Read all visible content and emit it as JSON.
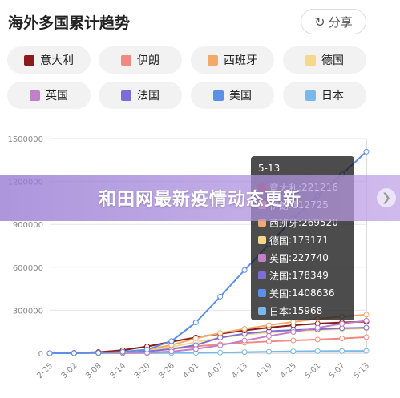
{
  "header": {
    "title": "海外多国累计趋势",
    "share_label": "分享",
    "share_icon": "share-icon"
  },
  "legend": [
    {
      "name": "意大利",
      "color": "#8b1a1a"
    },
    {
      "name": "伊朗",
      "color": "#f08a80"
    },
    {
      "name": "西班牙",
      "color": "#f2a96a"
    },
    {
      "name": "德国",
      "color": "#f5d98a"
    },
    {
      "name": "英国",
      "color": "#c07fc7"
    },
    {
      "name": "法国",
      "color": "#7b6fd6"
    },
    {
      "name": "美国",
      "color": "#5b8fe8"
    },
    {
      "name": "日本",
      "color": "#7ab8ea"
    }
  ],
  "tooltip": {
    "title": "5-13",
    "rows": [
      {
        "name": "意大利",
        "value": "221216"
      },
      {
        "name": "伊朗",
        "value": "112725"
      },
      {
        "name": "西班牙",
        "value": "269520"
      },
      {
        "name": "德国",
        "value": "173171"
      },
      {
        "name": "英国",
        "value": "227740"
      },
      {
        "name": "法国",
        "value": "178349"
      },
      {
        "name": "美国",
        "value": "1408636"
      },
      {
        "name": "日本",
        "value": "15968"
      }
    ]
  },
  "banner": {
    "text": "和田网最新疫情动态更新",
    "arrow_icon": "chevron-right-icon"
  },
  "chart_data": {
    "type": "line",
    "x": [
      "2-25",
      "3-02",
      "3-08",
      "3-14",
      "3-20",
      "3-26",
      "4-01",
      "4-07",
      "4-13",
      "4-19",
      "4-25",
      "5-01",
      "5-07",
      "5-13"
    ],
    "y_ticks": [
      "0",
      "300000",
      "600000",
      "900000",
      "1200000",
      "1500000"
    ],
    "ylim": [
      0,
      1500000
    ],
    "grid": "horizontal",
    "series": [
      {
        "name": "美国",
        "color": "#5b8fe8",
        "values": [
          60,
          100,
          2700,
          10000,
          25000,
          85000,
          215000,
          395000,
          580000,
          760000,
          940000,
          1100000,
          1250000,
          1408636
        ]
      },
      {
        "name": "西班牙",
        "color": "#f2a96a",
        "values": [
          2,
          150,
          670,
          6400,
          25000,
          57000,
          104000,
          141000,
          170000,
          196000,
          219000,
          240000,
          256000,
          269520
        ]
      },
      {
        "name": "英国",
        "color": "#c07fc7",
        "values": [
          13,
          40,
          270,
          1140,
          4000,
          11700,
          29500,
          55200,
          88600,
          120000,
          148000,
          178000,
          206000,
          227740
        ]
      },
      {
        "name": "意大利",
        "color": "#8b1a1a",
        "values": [
          320,
          2000,
          7400,
          21000,
          47000,
          80500,
          110000,
          135500,
          159500,
          178900,
          195000,
          207000,
          215000,
          221216
        ]
      },
      {
        "name": "法国",
        "color": "#7b6fd6",
        "values": [
          14,
          190,
          1100,
          4500,
          12600,
          29000,
          56900,
          109000,
          136800,
          152900,
          161500,
          167300,
          174800,
          178349
        ]
      },
      {
        "name": "德国",
        "color": "#f5d98a",
        "values": [
          18,
          150,
          900,
          4600,
          19800,
          43900,
          77900,
          107600,
          130000,
          145000,
          155000,
          162500,
          168500,
          173171
        ]
      },
      {
        "name": "伊朗",
        "color": "#f08a80",
        "values": [
          95,
          2300,
          6600,
          12700,
          19600,
          29400,
          47600,
          62600,
          73300,
          82200,
          89300,
          95600,
          103100,
          112725
        ]
      },
      {
        "name": "日本",
        "color": "#7ab8ea",
        "values": [
          170,
          270,
          500,
          800,
          1000,
          1400,
          2400,
          4300,
          7600,
          10800,
          13200,
          14500,
          15400,
          15968
        ]
      }
    ]
  }
}
